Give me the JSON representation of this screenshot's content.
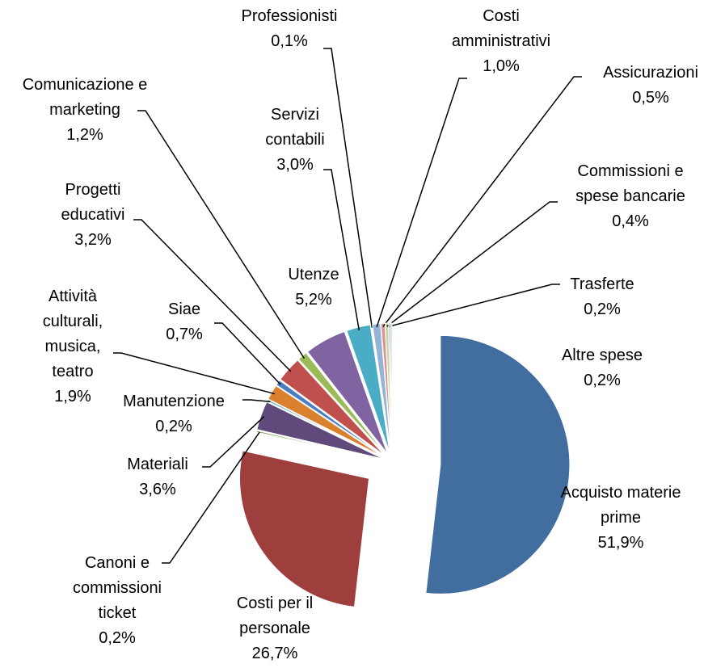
{
  "chart_data": {
    "type": "pie",
    "categories": [
      "Acquisto materie prime",
      "Costi per il personale",
      "Canoni e commissioni ticket",
      "Materiali",
      "Manutenzione",
      "Attività culturali, musica, teatro",
      "Siae",
      "Progetti educativi",
      "Comunicazione e marketing",
      "Utenze",
      "Servizi contabili",
      "Professionisti",
      "Costi amministrativi",
      "Assicurazioni",
      "Commissioni e spese bancarie",
      "Trasferte",
      "Altre spese"
    ],
    "values": [
      51.9,
      26.7,
      0.2,
      3.6,
      0.2,
      1.9,
      0.7,
      3.2,
      1.2,
      5.2,
      3.0,
      0.1,
      1.0,
      0.5,
      0.4,
      0.2,
      0.2
    ],
    "value_labels": [
      "51,9%",
      "26,7%",
      "0,2%",
      "3,6%",
      "0,2%",
      "1,9%",
      "0,7%",
      "3,2%",
      "1,2%",
      "5,2%",
      "3,0%",
      "0,1%",
      "1,0%",
      "0,5%",
      "0,4%",
      "0,2%",
      "0,2%"
    ],
    "colors": [
      "#426d9f",
      "#9e3f3e",
      "#7f9a48",
      "#604a7b",
      "#3f9bb3",
      "#d9812f",
      "#4a7ec0",
      "#c0504d",
      "#9bbb59",
      "#8064a2",
      "#4bacc6",
      "#f79646",
      "#95b3d7",
      "#d99694",
      "#c3d69b",
      "#b3a2c7",
      "#93cddd"
    ]
  }
}
